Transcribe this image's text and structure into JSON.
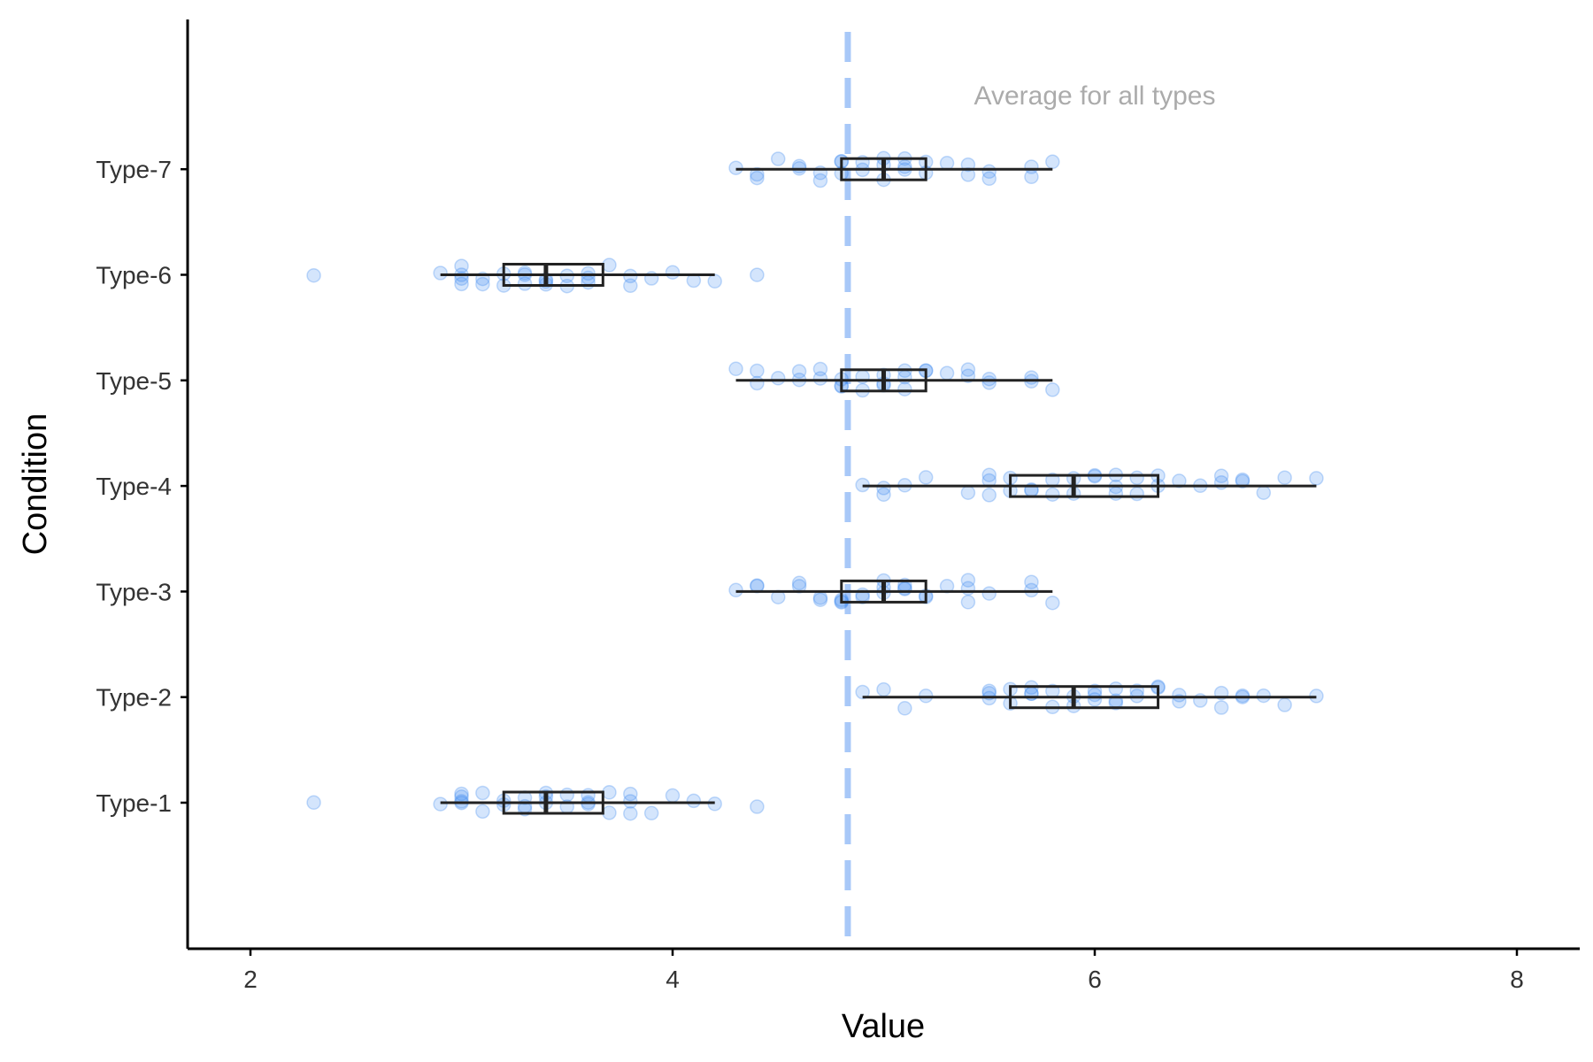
{
  "chart_data": {
    "type": "boxplot",
    "orientation": "horizontal",
    "xlabel": "Value",
    "ylabel": "Condition",
    "xlim": [
      1.7,
      8.3
    ],
    "x_ticks": [
      2,
      4,
      6,
      8
    ],
    "categories": [
      "Type-1",
      "Type-2",
      "Type-3",
      "Type-4",
      "Type-5",
      "Type-6",
      "Type-7"
    ],
    "reference_line": {
      "value": 4.83,
      "label": "Average for all types",
      "label_x": 6.0
    },
    "colors": {
      "points": "#3b87f0",
      "reference_line": "#a8c8f8",
      "box": "#222222",
      "annotation": "#ababab"
    },
    "series": [
      {
        "name": "Type-1",
        "box": {
          "whisker_low": 2.9,
          "q1": 3.2,
          "median": 3.4,
          "q3": 3.67,
          "whisker_high": 4.2
        },
        "points": [
          2.3,
          2.9,
          3.0,
          3.0,
          3.0,
          3.0,
          3.1,
          3.1,
          3.2,
          3.2,
          3.3,
          3.3,
          3.3,
          3.4,
          3.4,
          3.4,
          3.5,
          3.5,
          3.6,
          3.6,
          3.6,
          3.7,
          3.7,
          3.8,
          3.8,
          3.8,
          3.9,
          4.0,
          4.1,
          4.2,
          4.4
        ]
      },
      {
        "name": "Type-2",
        "box": {
          "whisker_low": 4.9,
          "q1": 5.6,
          "median": 5.9,
          "q3": 6.3,
          "whisker_high": 7.05
        },
        "points": [
          4.9,
          5.0,
          5.1,
          5.2,
          5.5,
          5.5,
          5.5,
          5.6,
          5.6,
          5.7,
          5.7,
          5.7,
          5.8,
          5.8,
          5.9,
          5.9,
          6.0,
          6.0,
          6.0,
          6.1,
          6.1,
          6.1,
          6.2,
          6.2,
          6.3,
          6.3,
          6.4,
          6.4,
          6.5,
          6.6,
          6.6,
          6.7,
          6.7,
          6.8,
          6.9,
          7.05
        ]
      },
      {
        "name": "Type-3",
        "box": {
          "whisker_low": 4.3,
          "q1": 4.8,
          "median": 5.0,
          "q3": 5.2,
          "whisker_high": 5.8
        },
        "points": [
          4.3,
          4.4,
          4.4,
          4.5,
          4.6,
          4.6,
          4.7,
          4.7,
          4.8,
          4.8,
          4.8,
          4.9,
          4.9,
          5.0,
          5.0,
          5.0,
          5.1,
          5.1,
          5.1,
          5.2,
          5.2,
          5.3,
          5.4,
          5.4,
          5.4,
          5.5,
          5.7,
          5.7,
          5.8
        ]
      },
      {
        "name": "Type-4",
        "box": {
          "whisker_low": 4.9,
          "q1": 5.6,
          "median": 5.9,
          "q3": 6.3,
          "whisker_high": 7.05
        },
        "points": [
          4.9,
          5.0,
          5.0,
          5.1,
          5.2,
          5.4,
          5.5,
          5.5,
          5.5,
          5.6,
          5.6,
          5.7,
          5.7,
          5.8,
          5.8,
          5.9,
          5.9,
          6.0,
          6.0,
          6.1,
          6.1,
          6.1,
          6.2,
          6.2,
          6.3,
          6.3,
          6.4,
          6.5,
          6.6,
          6.6,
          6.7,
          6.7,
          6.8,
          6.9,
          7.05
        ]
      },
      {
        "name": "Type-5",
        "box": {
          "whisker_low": 4.3,
          "q1": 4.8,
          "median": 5.0,
          "q3": 5.2,
          "whisker_high": 5.8
        },
        "points": [
          4.3,
          4.4,
          4.4,
          4.5,
          4.6,
          4.6,
          4.7,
          4.7,
          4.8,
          4.8,
          4.8,
          4.9,
          4.9,
          5.0,
          5.0,
          5.0,
          5.1,
          5.1,
          5.1,
          5.2,
          5.2,
          5.3,
          5.4,
          5.4,
          5.5,
          5.5,
          5.7,
          5.7,
          5.8
        ]
      },
      {
        "name": "Type-6",
        "box": {
          "whisker_low": 2.9,
          "q1": 3.2,
          "median": 3.4,
          "q3": 3.67,
          "whisker_high": 4.2
        },
        "points": [
          2.3,
          2.9,
          3.0,
          3.0,
          3.0,
          3.0,
          3.1,
          3.1,
          3.2,
          3.2,
          3.3,
          3.3,
          3.3,
          3.4,
          3.4,
          3.4,
          3.5,
          3.5,
          3.6,
          3.6,
          3.6,
          3.7,
          3.8,
          3.8,
          3.9,
          4.0,
          4.1,
          4.2,
          4.4
        ]
      },
      {
        "name": "Type-7",
        "box": {
          "whisker_low": 4.3,
          "q1": 4.8,
          "median": 5.0,
          "q3": 5.2,
          "whisker_high": 5.8
        },
        "points": [
          4.3,
          4.4,
          4.4,
          4.5,
          4.6,
          4.6,
          4.7,
          4.7,
          4.8,
          4.8,
          4.8,
          4.9,
          4.9,
          5.0,
          5.0,
          5.0,
          5.1,
          5.1,
          5.1,
          5.2,
          5.2,
          5.3,
          5.4,
          5.4,
          5.5,
          5.5,
          5.7,
          5.7,
          5.8
        ]
      }
    ]
  }
}
